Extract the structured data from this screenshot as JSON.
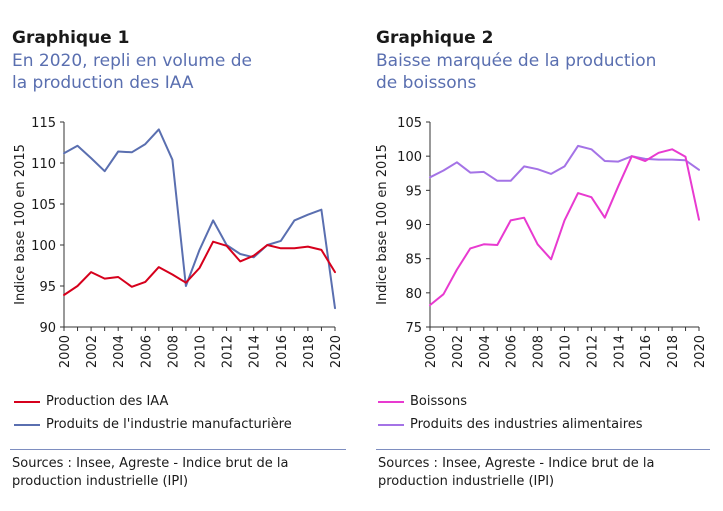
{
  "panels": [
    {
      "heading": "Graphique 1",
      "subtitle_lines": [
        "En 2020, repli en volume de",
        "la production des IAA"
      ],
      "sources_lines": [
        "Sources : Insee, Agreste - Indice brut de la",
        "production industrielle (IPI)"
      ]
    },
    {
      "heading": "Graphique 2",
      "subtitle_lines": [
        "Baisse marquée de la production",
        "de boissons"
      ],
      "sources_lines": [
        "Sources : Insee, Agreste - Indice brut de la",
        "production industrielle (IPI)"
      ]
    }
  ],
  "chart_data": [
    {
      "type": "line",
      "title": "Graphique 1",
      "subtitle": "En 2020, repli en volume de la production des IAA",
      "ylabel": "Indice base 100 en 2015",
      "xlabel": "",
      "x": [
        2000,
        2001,
        2002,
        2003,
        2004,
        2005,
        2006,
        2007,
        2008,
        2009,
        2010,
        2011,
        2012,
        2013,
        2014,
        2015,
        2016,
        2017,
        2018,
        2019,
        2020
      ],
      "xticks": [
        2000,
        2002,
        2004,
        2006,
        2008,
        2010,
        2012,
        2014,
        2016,
        2018,
        2020
      ],
      "ylim": [
        90,
        115
      ],
      "yticks": [
        90,
        95,
        100,
        105,
        110,
        115
      ],
      "grid": false,
      "legend_position": "bottom",
      "series": [
        {
          "name": "Production des IAA",
          "color": "#d6001c",
          "values": [
            93.9,
            95.0,
            96.7,
            95.9,
            96.1,
            94.9,
            95.5,
            97.3,
            96.4,
            95.4,
            97.2,
            100.4,
            99.9,
            98.0,
            98.7,
            100.0,
            99.6,
            99.6,
            99.8,
            99.4,
            96.7
          ]
        },
        {
          "name": "Produits de l'industrie manufacturière",
          "color": "#5a6fb0",
          "values": [
            111.2,
            112.1,
            110.6,
            109.0,
            111.4,
            111.3,
            112.3,
            114.1,
            110.4,
            95.0,
            99.4,
            103.0,
            100.0,
            98.9,
            98.5,
            100.0,
            100.5,
            103.0,
            103.7,
            104.3,
            92.3
          ]
        }
      ]
    },
    {
      "type": "line",
      "title": "Graphique 2",
      "subtitle": "Baisse marquée de la production de boissons",
      "ylabel": "Indice base 100 en 2015",
      "xlabel": "",
      "x": [
        2000,
        2001,
        2002,
        2003,
        2004,
        2005,
        2006,
        2007,
        2008,
        2009,
        2010,
        2011,
        2012,
        2013,
        2014,
        2015,
        2016,
        2017,
        2018,
        2019,
        2020
      ],
      "xticks": [
        2000,
        2002,
        2004,
        2006,
        2008,
        2010,
        2012,
        2014,
        2016,
        2018,
        2020
      ],
      "ylim": [
        75,
        105
      ],
      "yticks": [
        75,
        80,
        85,
        90,
        95,
        100,
        105
      ],
      "grid": false,
      "legend_position": "bottom",
      "series": [
        {
          "name": "Boissons",
          "color": "#e83ad0",
          "values": [
            78.2,
            79.8,
            83.4,
            86.5,
            87.1,
            87.0,
            90.6,
            91.0,
            87.1,
            84.9,
            90.6,
            94.6,
            94.0,
            91.0,
            95.6,
            100.0,
            99.3,
            100.5,
            101.0,
            99.9,
            90.7
          ]
        },
        {
          "name": "Produits des industries alimentaires",
          "color": "#a473e6",
          "values": [
            96.9,
            97.9,
            99.1,
            97.6,
            97.7,
            96.4,
            96.4,
            98.5,
            98.1,
            97.4,
            98.5,
            101.5,
            101.0,
            99.3,
            99.2,
            100.0,
            99.6,
            99.5,
            99.5,
            99.4,
            98.0
          ]
        }
      ]
    }
  ]
}
